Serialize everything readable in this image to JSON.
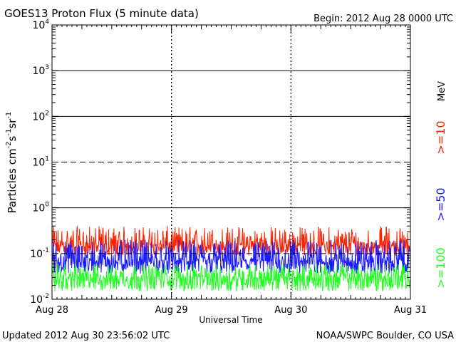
{
  "header": {
    "title": "GOES13 Proton Flux (5 minute data)",
    "begin": "Begin: 2012 Aug 28 0000 UTC"
  },
  "footer": {
    "updated": "Updated 2012 Aug 30 23:56:02 UTC",
    "credit": "NOAA/SWPC Boulder, CO USA"
  },
  "colors": {
    "ge10": "#ff2200",
    "ge50": "#1a1aff",
    "ge100": "#22ff22",
    "axis": "#000000"
  },
  "chart_data": {
    "type": "line",
    "yscale": "log",
    "ylim": [
      0.01,
      10000
    ],
    "y_ticks": [
      {
        "base": "10",
        "exp": "-2",
        "value": 0.01
      },
      {
        "base": "10",
        "exp": "-1",
        "value": 0.1
      },
      {
        "base": "10",
        "exp": "0",
        "value": 1
      },
      {
        "base": "10",
        "exp": "1",
        "value": 10
      },
      {
        "base": "10",
        "exp": "2",
        "value": 100
      },
      {
        "base": "10",
        "exp": "3",
        "value": 1000
      },
      {
        "base": "10",
        "exp": "4",
        "value": 10000
      }
    ],
    "x_ticks": [
      "Aug 28",
      "Aug 29",
      "Aug 30",
      "Aug 31"
    ],
    "xlabel": "Universal Time",
    "ylabel": {
      "main": "Particles cm",
      "e1": "-2",
      "s": "s",
      "e2": "-1",
      "sr": "sr",
      "e3": "-1"
    },
    "threshold_lines": [
      1,
      10,
      100,
      1000
    ],
    "unit_label": "MeV",
    "series": [
      {
        "name": ">=10",
        "color": "#ff2200",
        "typical": 0.15,
        "range": [
          0.09,
          0.4
        ]
      },
      {
        "name": ">=50",
        "color": "#1a1aff",
        "typical": 0.07,
        "range": [
          0.035,
          0.2
        ]
      },
      {
        "name": ">=100",
        "color": "#22ff22",
        "typical": 0.03,
        "range": [
          0.015,
          0.06
        ]
      }
    ],
    "points_per_series": 864
  }
}
